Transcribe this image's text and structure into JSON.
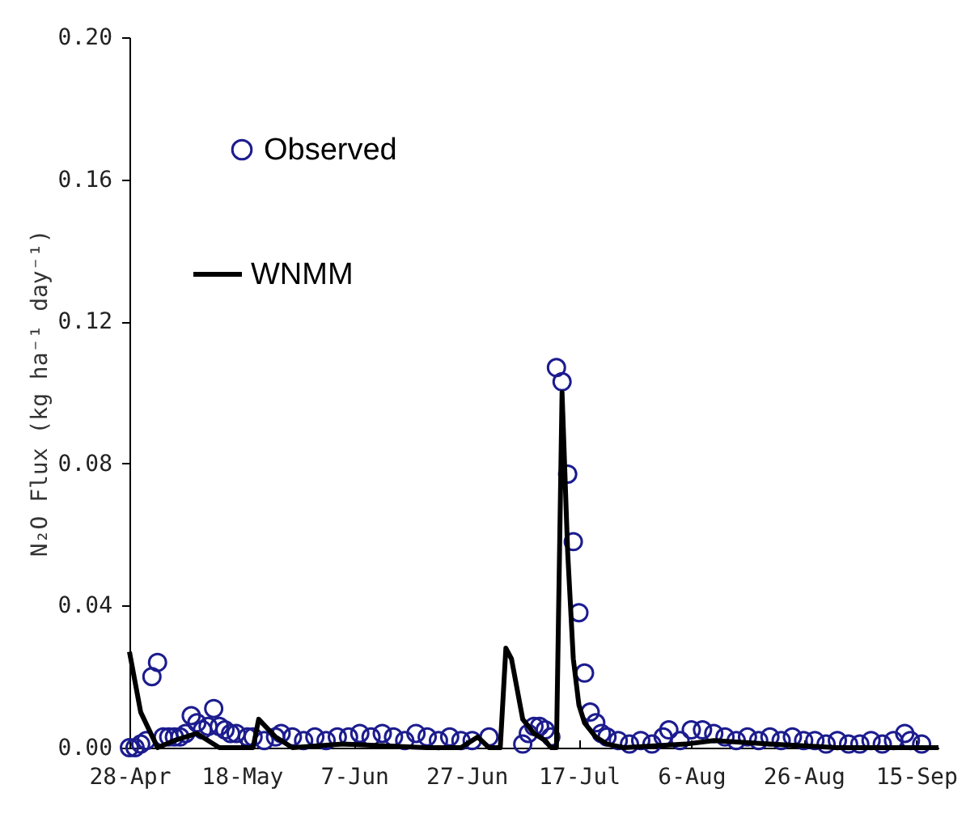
{
  "chart_data": {
    "type": "scatter",
    "ylabel": "N₂O Flux (kg ha⁻¹ day⁻¹)",
    "xlim": [
      "--04-28",
      "--09-19"
    ],
    "xticks": [
      {
        "value": "--04-28",
        "label": "28-Apr"
      },
      {
        "value": "--05-18",
        "label": "18-May"
      },
      {
        "value": "--06-07",
        "label": "7-Jun"
      },
      {
        "value": "--06-27",
        "label": "27-Jun"
      },
      {
        "value": "--07-17",
        "label": "17-Jul"
      },
      {
        "value": "--08-06",
        "label": "6-Aug"
      },
      {
        "value": "--08-26",
        "label": "26-Aug"
      },
      {
        "value": "--09-15",
        "label": "15-Sep"
      }
    ],
    "ylim": [
      0,
      0.2
    ],
    "yticks": [
      {
        "value": 0,
        "label": "0.00"
      },
      {
        "value": 0.04,
        "label": "0.04"
      },
      {
        "value": 0.08,
        "label": "0.08"
      },
      {
        "value": 0.12,
        "label": "0.12"
      },
      {
        "value": 0.16,
        "label": "0.16"
      },
      {
        "value": 0.2,
        "label": "0.20"
      }
    ],
    "grid": false,
    "legend": "top left",
    "series": [
      {
        "name": "Observed",
        "color": "#1c1c8f",
        "marker": "circle",
        "x": [
          "--04-28",
          "--04-29",
          "--04-30",
          "--05-01",
          "--05-02",
          "--05-03",
          "--05-04",
          "--05-05",
          "--05-06",
          "--05-07",
          "--05-08",
          "--05-09",
          "--05-10",
          "--05-11",
          "--05-12",
          "--05-13",
          "--05-14",
          "--05-15",
          "--05-16",
          "--05-17",
          "--05-19",
          "--05-20",
          "--05-22",
          "--05-24",
          "--05-25",
          "--05-27",
          "--05-29",
          "--05-31",
          "--06-02",
          "--06-04",
          "--06-06",
          "--06-08",
          "--06-10",
          "--06-12",
          "--06-14",
          "--06-16",
          "--06-18",
          "--06-20",
          "--06-22",
          "--06-24",
          "--06-26",
          "--06-28",
          "--07-01",
          "--07-07",
          "--07-08",
          "--07-09",
          "--07-10",
          "--07-11",
          "--07-12",
          "--07-13",
          "--07-14",
          "--07-15",
          "--07-16",
          "--07-17",
          "--07-18",
          "--07-19",
          "--07-20",
          "--07-21",
          "--07-22",
          "--07-24",
          "--07-26",
          "--07-28",
          "--07-30",
          "--08-01",
          "--08-02",
          "--08-04",
          "--08-06",
          "--08-08",
          "--08-10",
          "--08-12",
          "--08-14",
          "--08-16",
          "--08-18",
          "--08-20",
          "--08-22",
          "--08-24",
          "--08-26",
          "--08-28",
          "--08-30",
          "--09-01",
          "--09-03",
          "--09-05",
          "--09-07",
          "--09-09",
          "--09-11",
          "--09-13",
          "--09-14",
          "--09-16"
        ],
        "values": [
          0.0,
          0.0,
          0.001,
          0.002,
          0.02,
          0.024,
          0.003,
          0.003,
          0.003,
          0.003,
          0.004,
          0.009,
          0.007,
          0.005,
          0.006,
          0.011,
          0.006,
          0.005,
          0.004,
          0.004,
          0.003,
          0.003,
          0.002,
          0.003,
          0.004,
          0.003,
          0.002,
          0.003,
          0.002,
          0.003,
          0.003,
          0.004,
          0.003,
          0.004,
          0.003,
          0.002,
          0.004,
          0.003,
          0.002,
          0.003,
          0.002,
          0.002,
          0.003,
          0.001,
          0.004,
          0.006,
          0.006,
          0.005,
          0.003,
          0.107,
          0.103,
          0.077,
          0.058,
          0.038,
          0.021,
          0.01,
          0.007,
          0.004,
          0.003,
          0.002,
          0.001,
          0.002,
          0.001,
          0.003,
          0.005,
          0.002,
          0.005,
          0.005,
          0.004,
          0.003,
          0.002,
          0.003,
          0.002,
          0.003,
          0.002,
          0.003,
          0.002,
          0.002,
          0.001,
          0.002,
          0.001,
          0.001,
          0.002,
          0.001,
          0.002,
          0.004,
          0.002,
          0.001
        ]
      },
      {
        "name": "WNMM",
        "type": "line",
        "color": "#000000",
        "x": [
          "--04-28",
          "--04-30",
          "--05-03",
          "--05-06",
          "--05-10",
          "--05-14",
          "--05-20",
          "--05-21",
          "--05-24",
          "--05-27",
          "--06-05",
          "--06-20",
          "--06-26",
          "--06-29",
          "--07-01",
          "--07-03",
          "--07-04",
          "--07-05",
          "--07-07",
          "--07-09",
          "--07-11",
          "--07-12",
          "--07-13",
          "--07-14",
          "--07-15",
          "--07-16",
          "--07-17",
          "--07-18",
          "--07-20",
          "--07-22",
          "--07-25",
          "--08-05",
          "--08-10",
          "--08-20",
          "--09-01",
          "--09-19"
        ],
        "values": [
          0.027,
          0.01,
          0.0,
          0.002,
          0.004,
          0.0,
          0.0,
          0.008,
          0.003,
          0.0,
          0.001,
          0.0,
          0.0,
          0.003,
          0.0,
          0.0,
          0.028,
          0.025,
          0.008,
          0.004,
          0.002,
          0.0,
          0.0,
          0.1,
          0.055,
          0.025,
          0.012,
          0.007,
          0.003,
          0.001,
          0.0,
          0.001,
          0.002,
          0.001,
          0.0,
          0.0
        ]
      }
    ]
  }
}
